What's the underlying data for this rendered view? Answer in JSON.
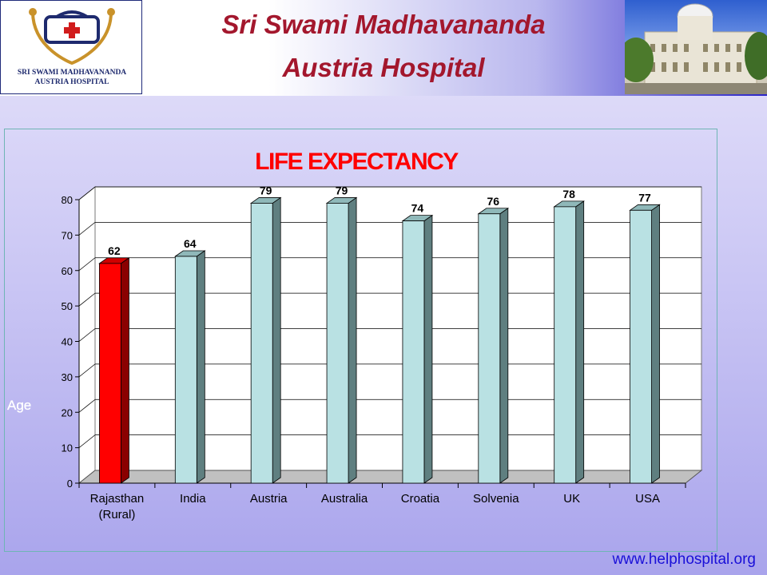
{
  "header": {
    "logo_line1": "SRI SWAMI MADHAVANANDA",
    "logo_line2": "AUSTRIA HOSPITAL",
    "title_line1": "Sri Swami Madhavananda",
    "title_line2": "Austria Hospital",
    "logo_icon": "medical-bag-stethoscope-icon"
  },
  "footer": {
    "website": "www.helphospital.org"
  },
  "chart_data": {
    "type": "bar",
    "title": "LIFE EXPECTANCY",
    "ylabel": "Age",
    "xlabel": "",
    "categories": [
      "Rajasthan\n(Rural)",
      "India",
      "Austria",
      "Australia",
      "Croatia",
      "Solvenia",
      "UK",
      "USA"
    ],
    "values": [
      62,
      64,
      79,
      79,
      74,
      76,
      78,
      77
    ],
    "ylim": [
      0,
      80
    ],
    "yticks": [
      0,
      10,
      20,
      30,
      40,
      50,
      60,
      70,
      80
    ],
    "grid": true,
    "data_labels": true,
    "bar_colors": [
      "#ff0000",
      "#b9e1e3",
      "#b9e1e3",
      "#b9e1e3",
      "#b9e1e3",
      "#b9e1e3",
      "#b9e1e3",
      "#b9e1e3"
    ]
  }
}
